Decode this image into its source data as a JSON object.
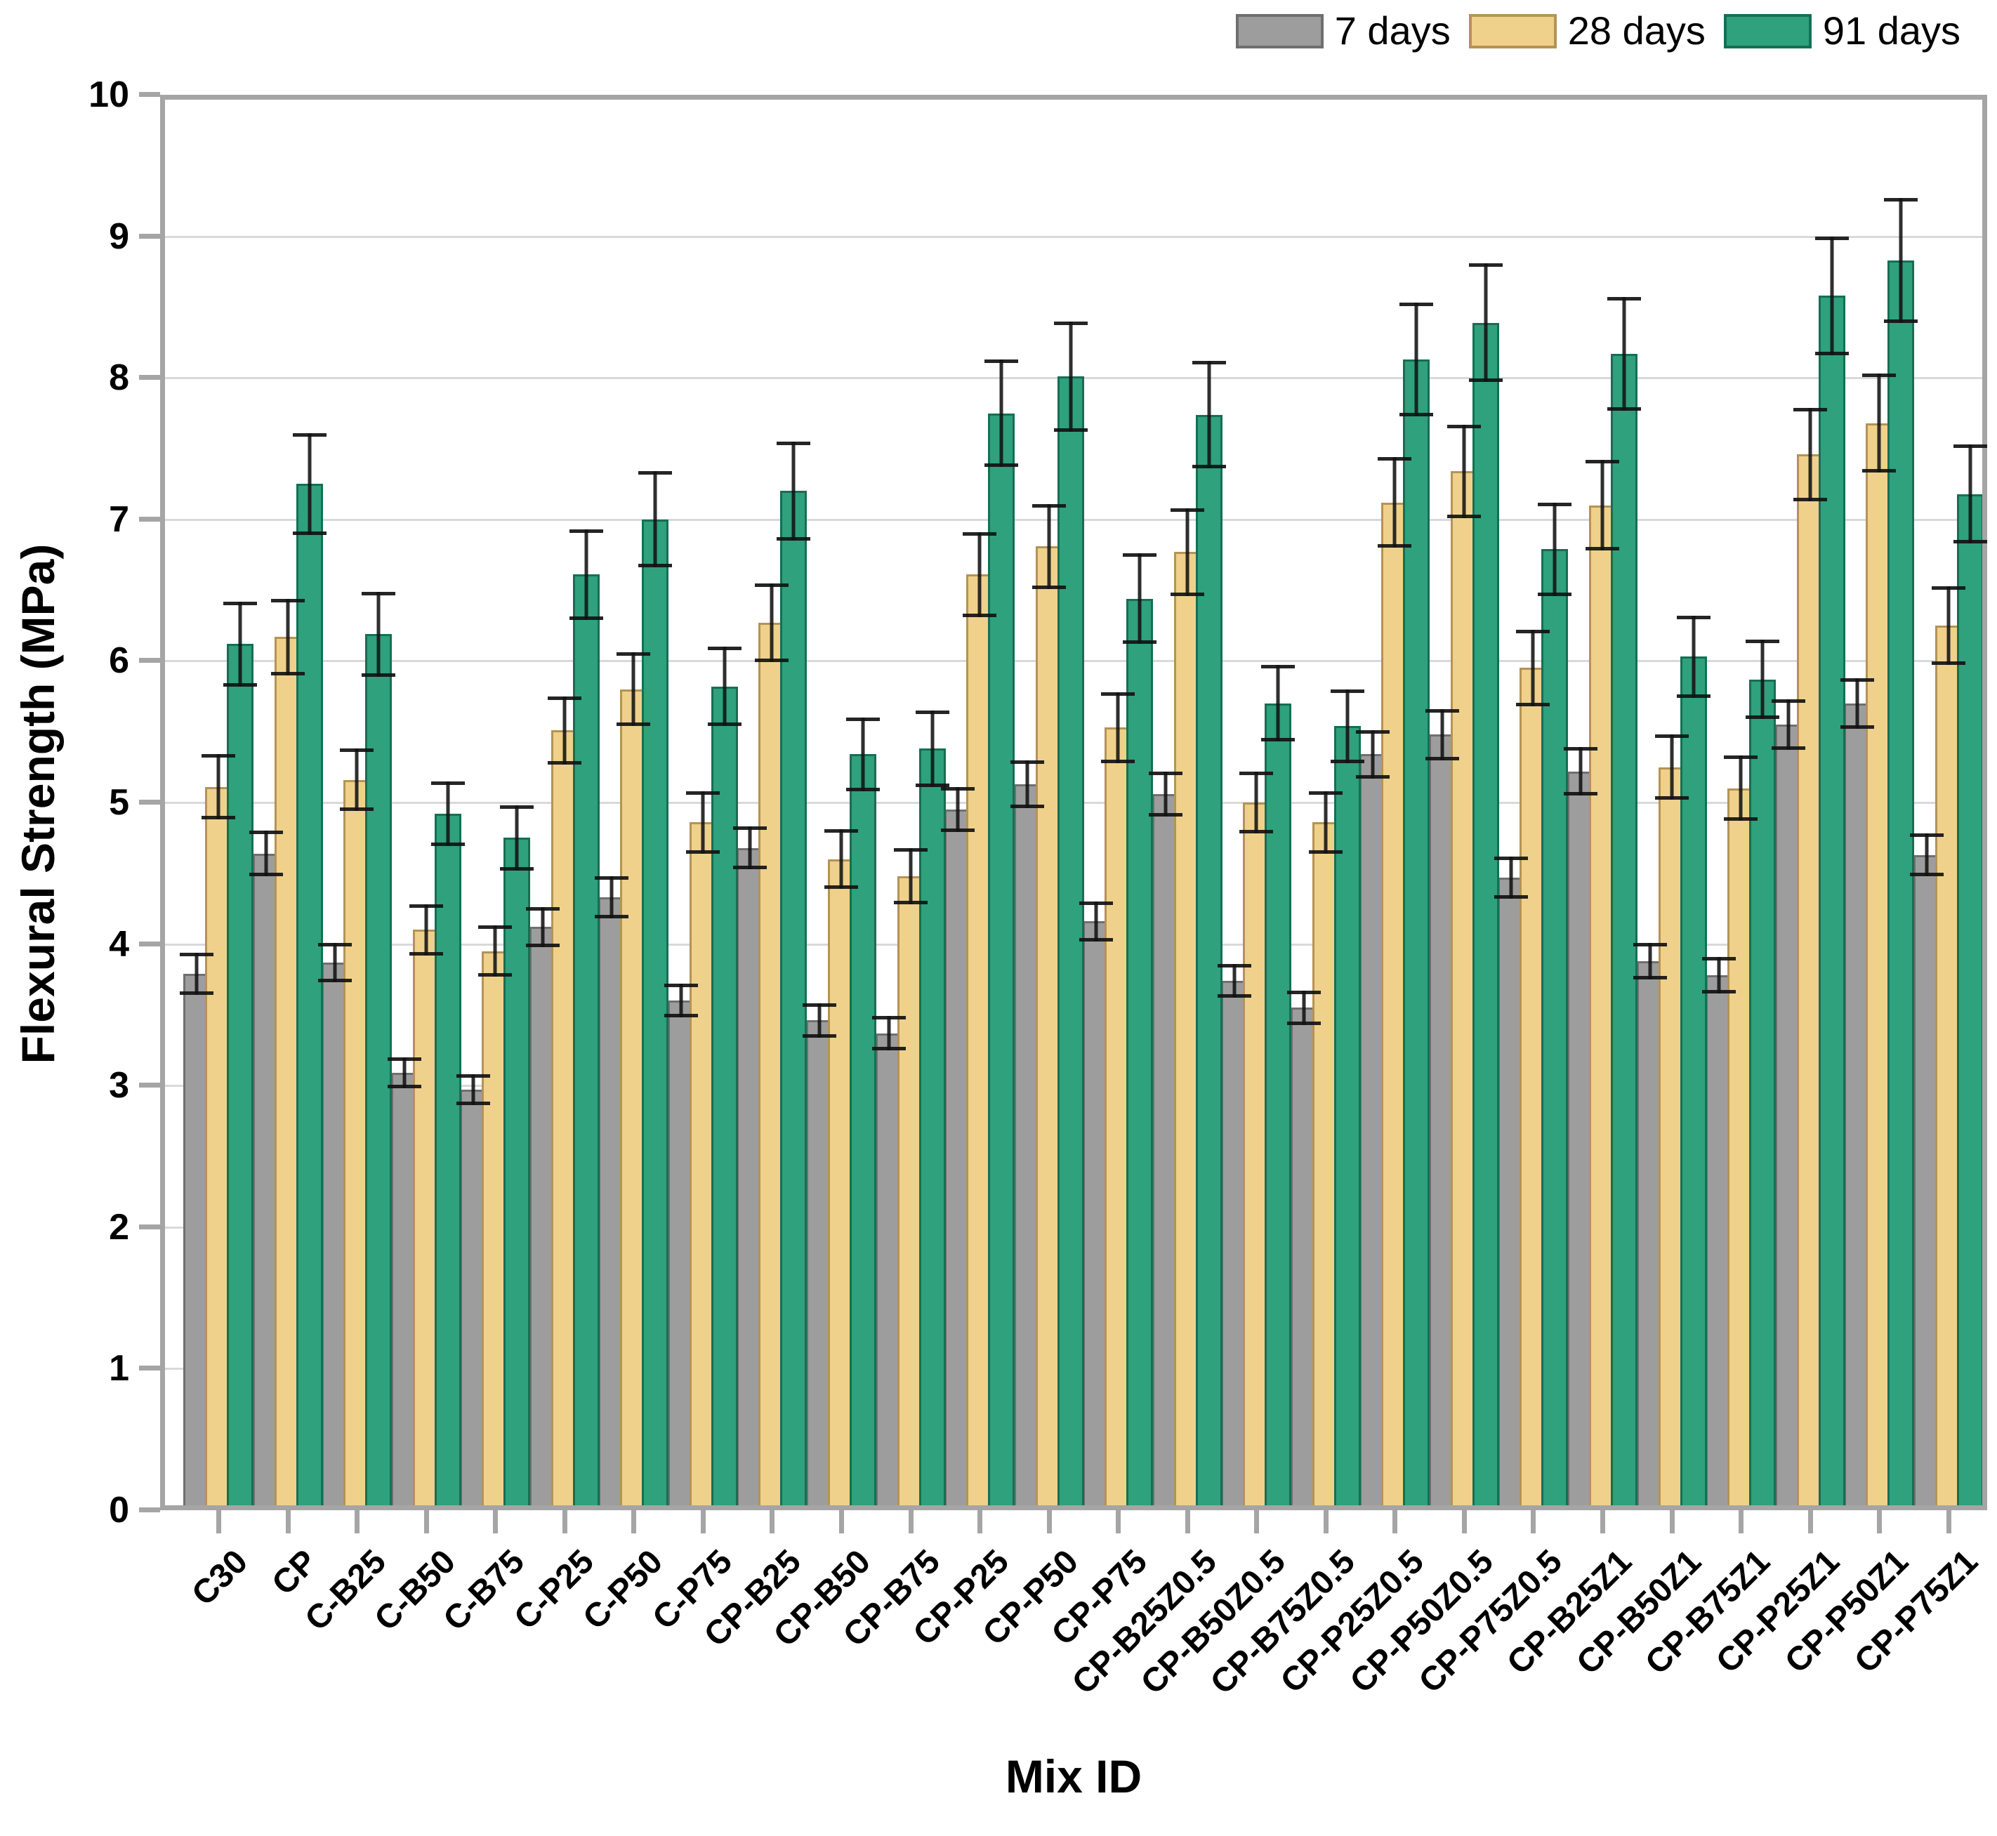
{
  "axes": {
    "y_title": "Flexural Strength (MPa)",
    "x_title": "Mix ID",
    "y_ticks": [
      "0",
      "1",
      "2",
      "3",
      "4",
      "5",
      "6",
      "7",
      "8",
      "9",
      "10"
    ],
    "y_min": 0,
    "y_max": 10,
    "grid_color": "#d9d9d9",
    "frame_color": "#a5a5a5"
  },
  "legend": {
    "position": "top-right",
    "entries": [
      {
        "label": "7 days",
        "color": "#9d9d9d",
        "border": "#6f6f6f"
      },
      {
        "label": "28 days",
        "color": "#efd18c",
        "border": "#b59355"
      },
      {
        "label": "91 days",
        "color": "#2fa17c",
        "border": "#166f53"
      }
    ]
  },
  "chart_data": {
    "type": "bar",
    "title": "",
    "xlabel": "Mix ID",
    "ylabel": "Flexural Strength (MPa)",
    "ylim": [
      0,
      10
    ],
    "grid": true,
    "legend_position": "top-right",
    "error_bars": true,
    "categories": [
      "C30",
      "CP",
      "C-B25",
      "C-B50",
      "C-B75",
      "C-P25",
      "C-P50",
      "C-P75",
      "CP-B25",
      "CP-B50",
      "CP-B75",
      "CP-P25",
      "CP-P50",
      "CP-P75",
      "CP-B25Z0.5",
      "CP-B50Z0.5",
      "CP-B75Z0.5",
      "CP-P25Z0.5",
      "CP-P50Z0.5",
      "CP-P75Z0.5",
      "CP-B25Z1",
      "CP-B50Z1",
      "CP-B75Z1",
      "CP-P25Z1",
      "CP-P50Z1",
      "CP-P75Z1"
    ],
    "series": [
      {
        "name": "7 days",
        "color": "#9d9d9d",
        "border_color": "#6f6f6f",
        "values": [
          3.79,
          4.64,
          3.87,
          3.09,
          2.97,
          4.12,
          4.33,
          3.6,
          4.68,
          3.46,
          3.37,
          4.95,
          5.13,
          4.16,
          5.06,
          3.74,
          3.55,
          5.34,
          5.48,
          4.47,
          5.22,
          3.88,
          3.78,
          5.55,
          5.7,
          4.63
        ],
        "errors": [
          0.15,
          0.16,
          0.14,
          0.11,
          0.11,
          0.14,
          0.15,
          0.12,
          0.15,
          0.12,
          0.12,
          0.16,
          0.17,
          0.14,
          0.16,
          0.12,
          0.12,
          0.17,
          0.18,
          0.15,
          0.17,
          0.13,
          0.13,
          0.18,
          0.18,
          0.15
        ]
      },
      {
        "name": "28 days",
        "color": "#efd18c",
        "border_color": "#b59355",
        "values": [
          5.11,
          6.17,
          5.16,
          4.1,
          3.95,
          5.51,
          5.8,
          4.86,
          6.27,
          4.6,
          4.48,
          6.61,
          6.81,
          5.53,
          6.77,
          5.0,
          4.86,
          7.12,
          7.34,
          5.95,
          7.1,
          5.25,
          5.1,
          7.46,
          7.68,
          6.25
        ],
        "errors": [
          0.23,
          0.27,
          0.22,
          0.18,
          0.18,
          0.24,
          0.26,
          0.22,
          0.28,
          0.21,
          0.2,
          0.3,
          0.3,
          0.25,
          0.31,
          0.22,
          0.22,
          0.32,
          0.33,
          0.27,
          0.32,
          0.23,
          0.23,
          0.33,
          0.35,
          0.28
        ]
      },
      {
        "name": "91 days",
        "color": "#2fa17c",
        "border_color": "#166f53",
        "values": [
          6.12,
          7.25,
          6.19,
          4.92,
          4.75,
          6.61,
          7.0,
          5.82,
          7.2,
          5.34,
          5.38,
          7.75,
          8.01,
          6.44,
          7.74,
          5.7,
          5.54,
          8.13,
          8.39,
          6.79,
          8.17,
          6.03,
          5.87,
          8.58,
          8.83,
          7.18
        ],
        "errors": [
          0.3,
          0.36,
          0.3,
          0.23,
          0.23,
          0.32,
          0.34,
          0.28,
          0.35,
          0.26,
          0.27,
          0.38,
          0.39,
          0.32,
          0.38,
          0.27,
          0.26,
          0.4,
          0.42,
          0.33,
          0.4,
          0.29,
          0.28,
          0.42,
          0.44,
          0.35
        ]
      }
    ]
  }
}
